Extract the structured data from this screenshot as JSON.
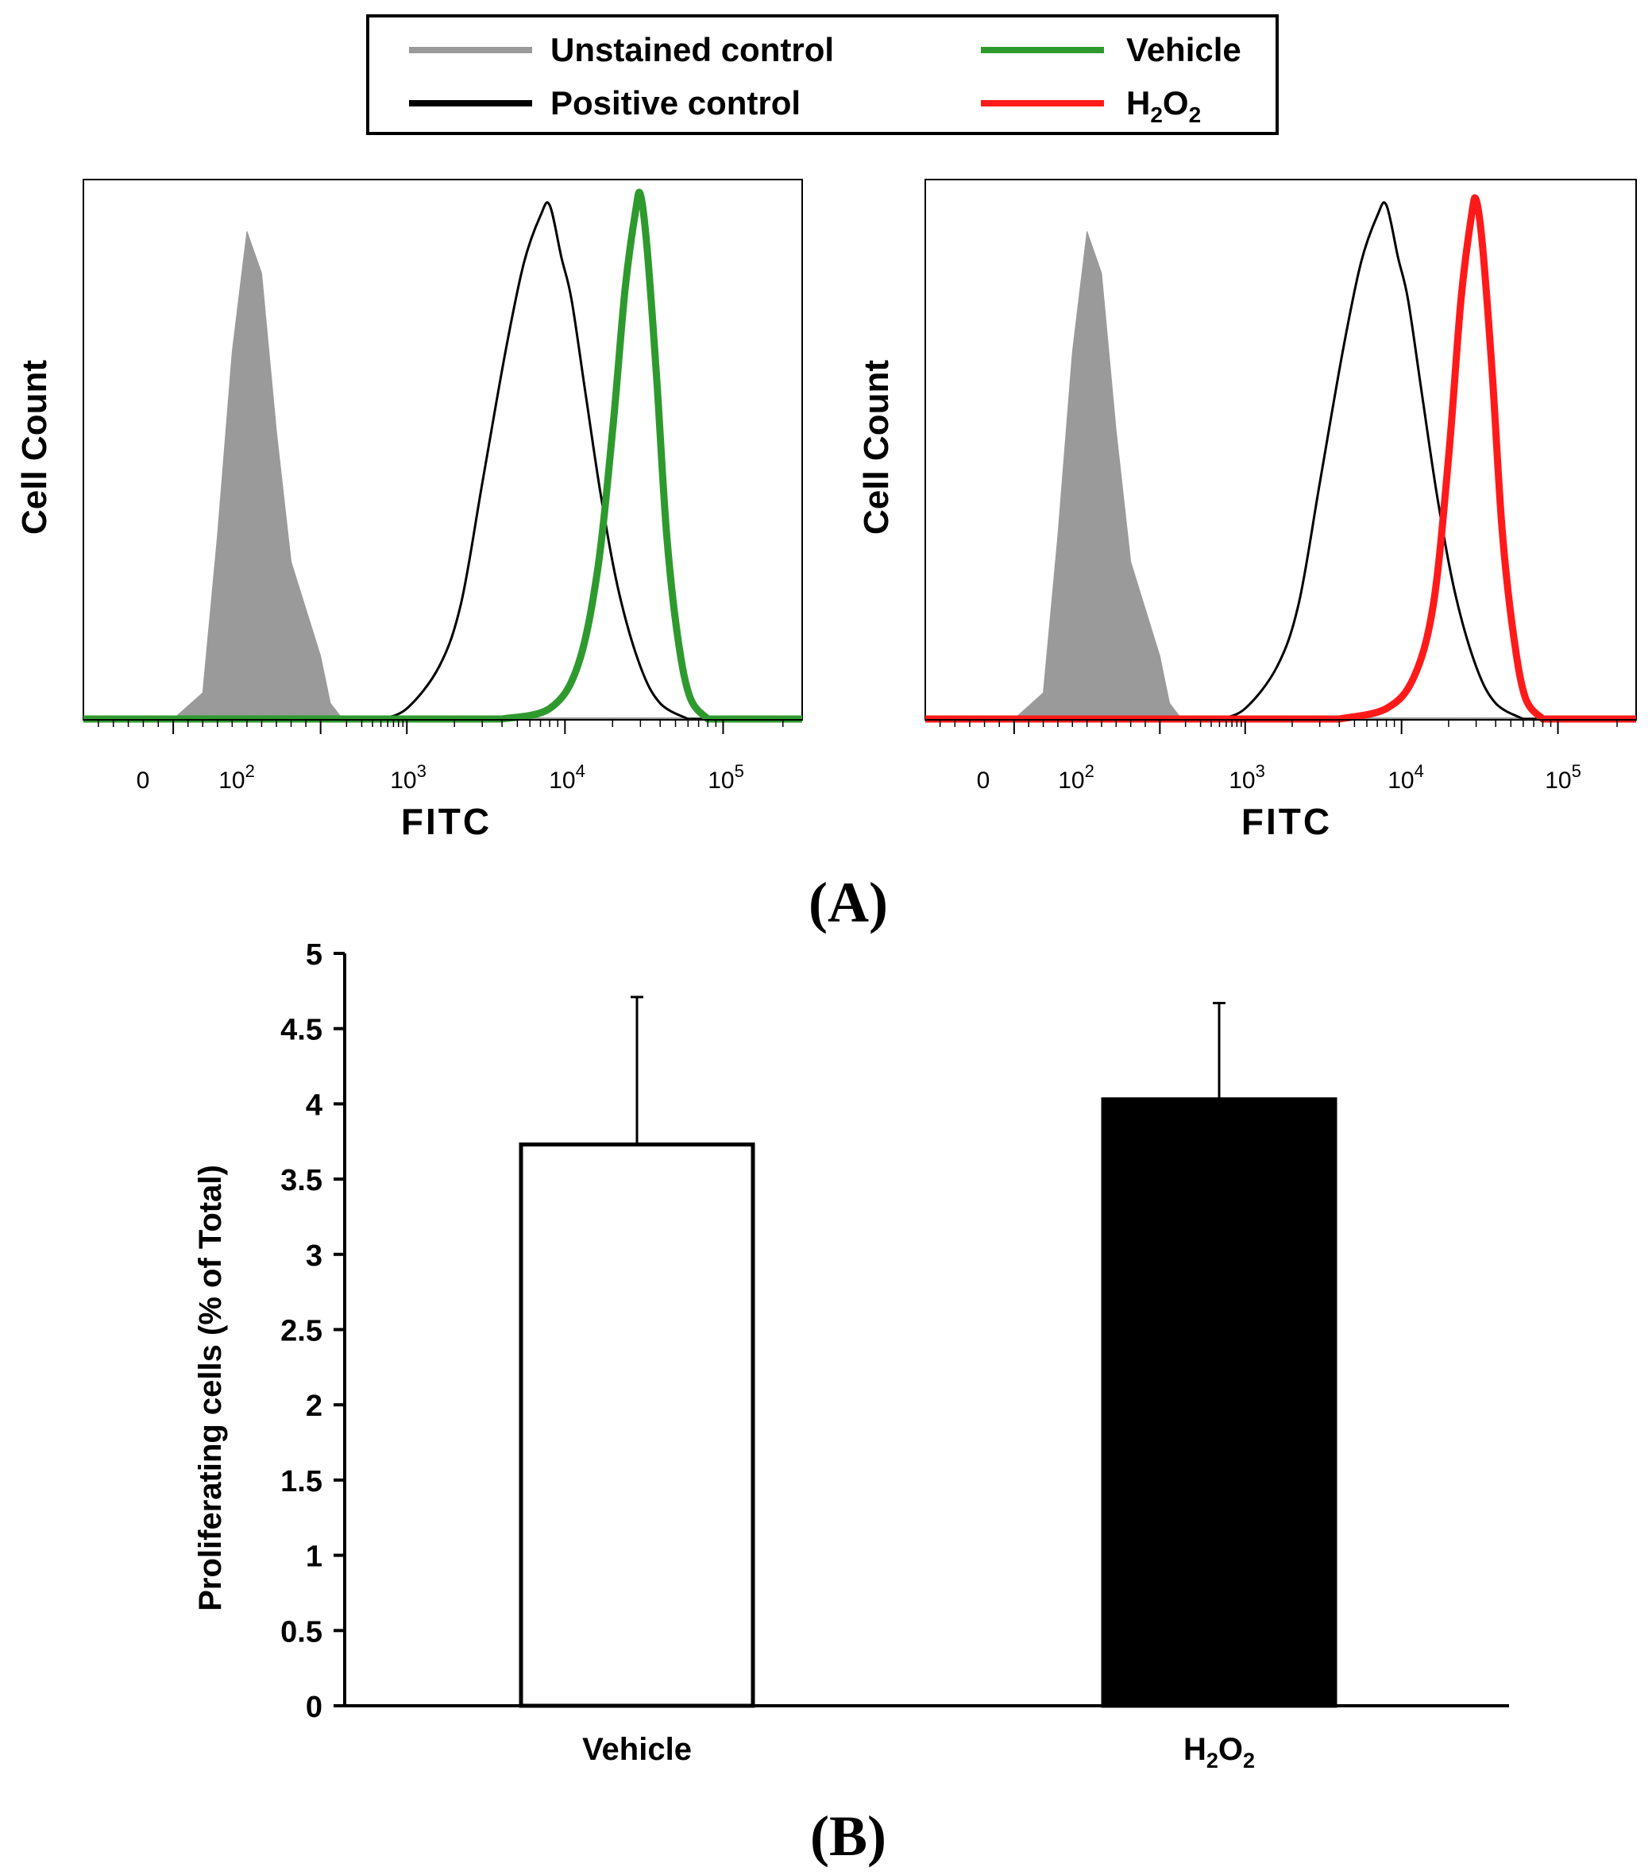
{
  "legend": {
    "items": [
      {
        "label": "Unstained control",
        "color": "#9a9a9a",
        "sub": null
      },
      {
        "label": "Vehicle",
        "color": "#2e9a2e",
        "sub": null
      },
      {
        "label": "Positive control",
        "color": "#000000",
        "sub": null
      },
      {
        "label": "H",
        "sub": "2",
        "label2": "O",
        "sub2": "2",
        "color": "#ff1a1a"
      }
    ]
  },
  "panel_a": {
    "tag": "(A)",
    "x_tick_labels": [
      "0",
      "10",
      "10",
      "10",
      "10"
    ],
    "x_tick_exponents": [
      "",
      "2",
      "3",
      "4",
      "5"
    ],
    "left": {
      "ylabel": "Cell Count",
      "xlabel": "FITC"
    },
    "right": {
      "ylabel": "Cell Count",
      "xlabel": "FITC"
    }
  },
  "panel_b": {
    "tag": "(B)",
    "ylabel": "Proliferating cells (% of Total)",
    "ytick_labels": [
      "0",
      "0.5",
      "1",
      "1.5",
      "2",
      "2.5",
      "3",
      "3.5",
      "4",
      "4.5",
      "5"
    ]
  },
  "chart_data": [
    {
      "type": "area",
      "panel": "A-left",
      "xlabel": "FITC",
      "ylabel": "Cell Count",
      "x_scale": "biexponential",
      "x_ticks": [
        "0",
        "10^2",
        "10^3",
        "10^4",
        "10^5"
      ],
      "series": [
        {
          "name": "Unstained control",
          "color": "#9a9a9a",
          "filled": true,
          "x": [
            0,
            20,
            30,
            40,
            50,
            60,
            70,
            80,
            100,
            130,
            180
          ],
          "y": [
            0,
            0.05,
            0.35,
            0.7,
            0.93,
            0.85,
            0.55,
            0.3,
            0.12,
            0.03,
            0
          ]
        },
        {
          "name": "Positive control",
          "color": "#000000",
          "filled": false,
          "x": [
            500,
            1000,
            1600,
            2200,
            3000,
            4200,
            5500,
            7000,
            8000,
            9500,
            11000,
            13500,
            17000,
            22000,
            30000,
            40000,
            60000
          ],
          "y": [
            0,
            0.02,
            0.1,
            0.22,
            0.45,
            0.7,
            0.87,
            0.96,
            0.98,
            0.88,
            0.8,
            0.62,
            0.42,
            0.24,
            0.1,
            0.03,
            0
          ]
        },
        {
          "name": "Vehicle",
          "color": "#2e9a2e",
          "filled": false,
          "x": [
            4000,
            8000,
            12000,
            16000,
            20000,
            24000,
            28000,
            30000,
            33000,
            38000,
            44000,
            52000,
            62000,
            80000
          ],
          "y": [
            0,
            0.02,
            0.1,
            0.28,
            0.55,
            0.82,
            0.97,
            1.0,
            0.9,
            0.65,
            0.35,
            0.15,
            0.04,
            0
          ]
        }
      ]
    },
    {
      "type": "area",
      "panel": "A-right",
      "xlabel": "FITC",
      "ylabel": "Cell Count",
      "x_scale": "biexponential",
      "x_ticks": [
        "0",
        "10^2",
        "10^3",
        "10^4",
        "10^5"
      ],
      "series": [
        {
          "name": "Unstained control",
          "color": "#9a9a9a",
          "filled": true,
          "x": [
            0,
            20,
            30,
            40,
            50,
            60,
            70,
            80,
            100,
            130,
            180
          ],
          "y": [
            0,
            0.05,
            0.35,
            0.7,
            0.93,
            0.85,
            0.55,
            0.3,
            0.12,
            0.03,
            0
          ]
        },
        {
          "name": "Positive control",
          "color": "#000000",
          "filled": false,
          "x": [
            500,
            1000,
            1600,
            2200,
            3000,
            4200,
            5500,
            7000,
            8000,
            9500,
            11000,
            13500,
            17000,
            22000,
            30000,
            40000,
            60000
          ],
          "y": [
            0,
            0.02,
            0.1,
            0.22,
            0.45,
            0.7,
            0.87,
            0.96,
            0.98,
            0.88,
            0.8,
            0.62,
            0.42,
            0.24,
            0.1,
            0.03,
            0
          ]
        },
        {
          "name": "H2O2",
          "color": "#ff1a1a",
          "filled": false,
          "x": [
            4000,
            8000,
            12000,
            16000,
            20000,
            24000,
            28000,
            30000,
            33000,
            38000,
            44000,
            52000,
            62000,
            80000
          ],
          "y": [
            0,
            0.02,
            0.08,
            0.22,
            0.5,
            0.8,
            0.96,
            0.99,
            0.9,
            0.66,
            0.36,
            0.16,
            0.04,
            0
          ]
        }
      ]
    },
    {
      "type": "bar",
      "panel": "B",
      "categories": [
        "Vehicle",
        "H2O2"
      ],
      "category_display": [
        {
          "main": "Vehicle"
        },
        {
          "main": "H",
          "sub": "2",
          "main2": "O",
          "sub2": "2"
        }
      ],
      "values": [
        3.73,
        4.03
      ],
      "errors": [
        0.98,
        0.64
      ],
      "bar_colors": [
        "#ffffff",
        "#000000"
      ],
      "ylabel": "Proliferating cells (% of Total)",
      "ylim": [
        0,
        5
      ],
      "ytick_step": 0.5
    }
  ]
}
